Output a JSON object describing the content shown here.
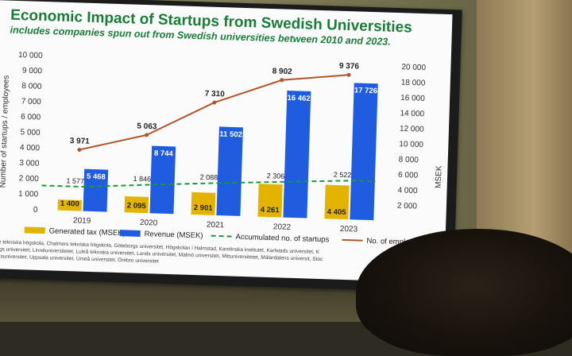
{
  "slide": {
    "title": "Economic Impact of Startups from Swedish Universities",
    "subtitle": "includes companies spun out from Swedish universities between 2010 and 2023."
  },
  "chart_data": {
    "type": "bar",
    "categories": [
      "2019",
      "2020",
      "2021",
      "2022",
      "2023"
    ],
    "series": [
      {
        "name": "Generated tax (MSEK)",
        "kind": "bar",
        "axis": "right",
        "color": "#e2b400",
        "values": [
          1400,
          2095,
          2901,
          4261,
          4405
        ],
        "labels": [
          "1 400",
          "2 095",
          "2 901",
          "4 261",
          "4 405"
        ]
      },
      {
        "name": "Revenue (MSEK)",
        "kind": "bar",
        "axis": "right",
        "color": "#1f5ce0",
        "values": [
          5468,
          8744,
          11502,
          16462,
          17726
        ],
        "labels": [
          "5 468",
          "8 744",
          "11 502",
          "16 462",
          "17 726"
        ]
      },
      {
        "name": "Accumulated no. of startups",
        "kind": "dashed-line",
        "axis": "left",
        "color": "#1a9a3c",
        "values": [
          1577,
          1846,
          2088,
          2306,
          2522
        ],
        "labels": [
          "1 577",
          "1 846",
          "2 088",
          "2 306",
          "2 522"
        ]
      },
      {
        "name": "No. of emplo",
        "kind": "line",
        "axis": "left",
        "color": "#b0562e",
        "values": [
          3971,
          5063,
          7310,
          8902,
          9376
        ],
        "labels": [
          "3 971",
          "5 063",
          "7 310",
          "8 902",
          "9 376"
        ]
      }
    ],
    "ylabel": "Number of startups / employees",
    "y2label": "MSEK",
    "ylim": [
      0,
      10000
    ],
    "y2lim": [
      0,
      20000
    ],
    "yticks": [
      "0",
      "1 000",
      "2 000",
      "3 000",
      "4 000",
      "5 000",
      "6 000",
      "7 000",
      "8 000",
      "9 000",
      "10 000"
    ],
    "y2ticks": [
      "2 000",
      "4 000",
      "6 000",
      "8 000",
      "10 000",
      "12 000",
      "14 000",
      "16 000",
      "18 000",
      "20 000"
    ],
    "grid": false,
    "legend": "bottom"
  },
  "footnote": [
    "ge tekniska högskola, Chalmers tekniska högskola, Göteborgs universitet, Högskolan i Halmstad, Karolinska institutet, Karlstads universitet, K",
    "ings universitet, Linnéuniversitetet, Luleå tekniska universitet, Lunds universitet, Malmö universitet, Mittuniversitetet, Mälardalens universit, Stoc",
    "uksuniversitet, Uppsala universitet, Umeå universitet, Örebro universitet"
  ]
}
